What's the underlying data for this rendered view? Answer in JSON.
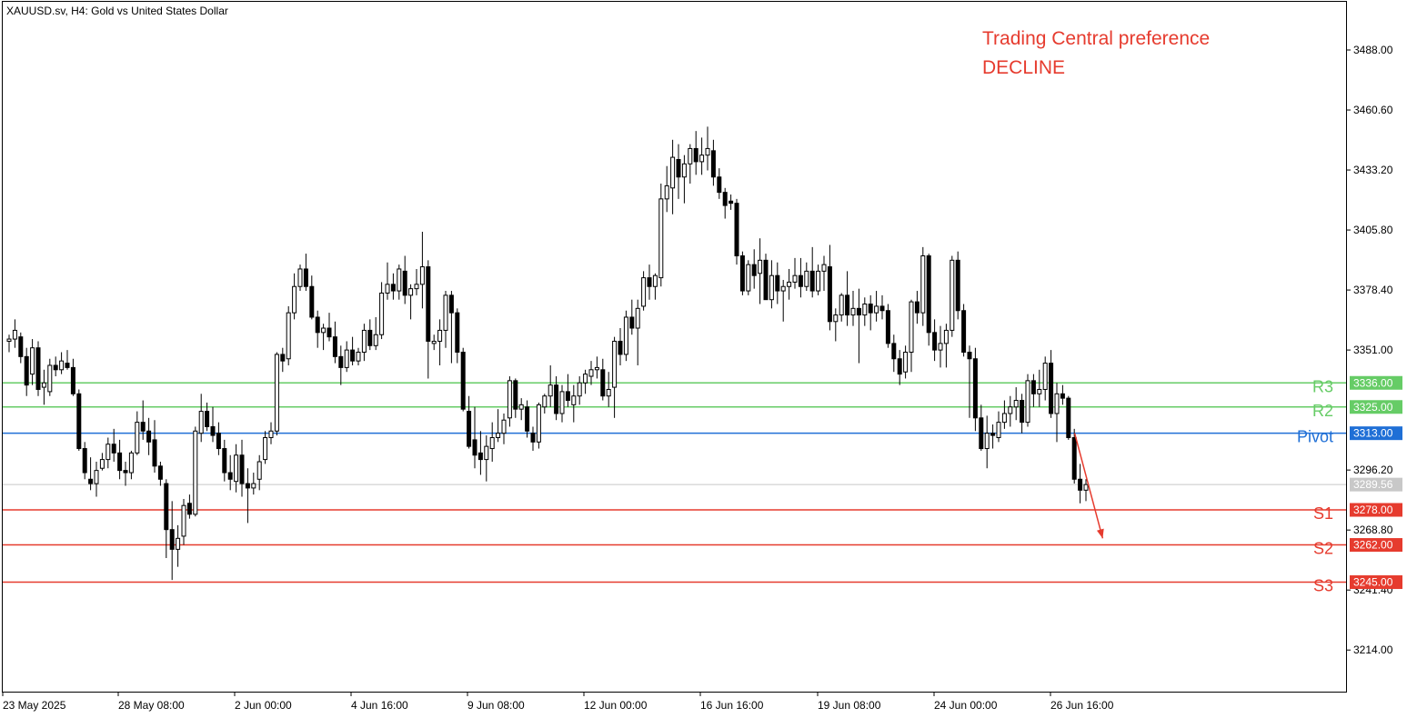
{
  "header": {
    "symbol_title": "XAUUSD.sv, H4:  Gold vs United States Dollar"
  },
  "preference": {
    "line1": "Trading Central preference",
    "line2": "DECLINE"
  },
  "colors": {
    "resistance": "#66cc66",
    "pivot": "#1f6fd6",
    "support": "#e63b2e",
    "current_price": "#c8c8c8",
    "arrow": "#e63b2e"
  },
  "chart_data": {
    "type": "candlestick",
    "symbol": "XAUUSD.sv",
    "timeframe": "H4",
    "ylim": [
      3195,
      3510
    ],
    "y_ticks": [
      "3488.00",
      "3460.60",
      "3433.20",
      "3405.80",
      "3378.40",
      "3351.00",
      "3296.20",
      "3268.80",
      "3241.40",
      "3214.00"
    ],
    "x_ticks": [
      "23 May 2025",
      "28 May 08:00",
      "2 Jun 00:00",
      "4 Jun 16:00",
      "9 Jun 08:00",
      "12 Jun 00:00",
      "16 Jun 16:00",
      "19 Jun 08:00",
      "24 Jun 00:00",
      "26 Jun 16:00"
    ],
    "current_price": {
      "value": 3289.56,
      "label": "3289.56"
    },
    "levels": [
      {
        "name": "R3",
        "value": 3336.0,
        "label": "3336.00",
        "kind": "resistance"
      },
      {
        "name": "R2",
        "value": 3325.0,
        "label": "3325.00",
        "kind": "resistance"
      },
      {
        "name": "Pivot",
        "value": 3313.0,
        "label": "3313.00",
        "kind": "pivot"
      },
      {
        "name": "S1",
        "value": 3278.0,
        "label": "3278.00",
        "kind": "support"
      },
      {
        "name": "S2",
        "value": 3262.0,
        "label": "3262.00",
        "kind": "support"
      },
      {
        "name": "S3",
        "value": 3245.0,
        "label": "3245.00",
        "kind": "support"
      }
    ],
    "arrow": {
      "from_bar": 179,
      "from_price": 3313,
      "to_bar": 186,
      "to_price": 3265
    },
    "candles": [
      [
        3355,
        3358,
        3350,
        3356
      ],
      [
        3356,
        3365,
        3352,
        3360
      ],
      [
        3357,
        3359,
        3345,
        3348
      ],
      [
        3348,
        3352,
        3330,
        3335
      ],
      [
        3340,
        3356,
        3335,
        3352
      ],
      [
        3352,
        3355,
        3330,
        3333
      ],
      [
        3334,
        3342,
        3326,
        3336
      ],
      [
        3332,
        3347,
        3330,
        3344
      ],
      [
        3344,
        3348,
        3339,
        3342
      ],
      [
        3342,
        3350,
        3340,
        3346
      ],
      [
        3345,
        3351,
        3342,
        3343
      ],
      [
        3343,
        3347,
        3330,
        3331
      ],
      [
        3331,
        3333,
        3305,
        3306
      ],
      [
        3306,
        3309,
        3292,
        3295
      ],
      [
        3292,
        3302,
        3287,
        3290
      ],
      [
        3290,
        3300,
        3284,
        3296
      ],
      [
        3297,
        3304,
        3296,
        3301
      ],
      [
        3301,
        3311,
        3297,
        3308
      ],
      [
        3308,
        3315,
        3300,
        3304
      ],
      [
        3304,
        3310,
        3292,
        3296
      ],
      [
        3296,
        3300,
        3289,
        3295
      ],
      [
        3295,
        3305,
        3292,
        3304
      ],
      [
        3304,
        3323,
        3303,
        3318
      ],
      [
        3318,
        3328,
        3310,
        3314
      ],
      [
        3314,
        3320,
        3303,
        3309
      ],
      [
        3310,
        3319,
        3295,
        3298
      ],
      [
        3298,
        3300,
        3289,
        3292
      ],
      [
        3290,
        3292,
        3256,
        3269
      ],
      [
        3269,
        3282,
        3246,
        3260
      ],
      [
        3260,
        3271,
        3252,
        3265
      ],
      [
        3266,
        3283,
        3262,
        3280
      ],
      [
        3281,
        3285,
        3274,
        3276
      ],
      [
        3276,
        3316,
        3275,
        3314
      ],
      [
        3313,
        3331,
        3309,
        3323
      ],
      [
        3323,
        3327,
        3314,
        3316
      ],
      [
        3316,
        3325,
        3309,
        3312
      ],
      [
        3313,
        3318,
        3303,
        3306
      ],
      [
        3306,
        3310,
        3291,
        3295
      ],
      [
        3295,
        3303,
        3287,
        3292
      ],
      [
        3291,
        3308,
        3286,
        3303
      ],
      [
        3303,
        3310,
        3284,
        3290
      ],
      [
        3290,
        3297,
        3272,
        3288
      ],
      [
        3288,
        3295,
        3285,
        3290
      ],
      [
        3292,
        3303,
        3287,
        3300
      ],
      [
        3301,
        3314,
        3299,
        3311
      ],
      [
        3311,
        3318,
        3308,
        3314
      ],
      [
        3314,
        3350,
        3312,
        3349
      ],
      [
        3349,
        3352,
        3341,
        3346
      ],
      [
        3347,
        3371,
        3344,
        3368
      ],
      [
        3368,
        3386,
        3365,
        3380
      ],
      [
        3380,
        3390,
        3378,
        3388
      ],
      [
        3388,
        3395,
        3378,
        3380
      ],
      [
        3380,
        3385,
        3365,
        3366
      ],
      [
        3366,
        3369,
        3352,
        3359
      ],
      [
        3359,
        3363,
        3351,
        3361
      ],
      [
        3361,
        3368,
        3355,
        3357
      ],
      [
        3357,
        3364,
        3345,
        3348
      ],
      [
        3348,
        3353,
        3335,
        3343
      ],
      [
        3343,
        3355,
        3341,
        3351
      ],
      [
        3351,
        3357,
        3344,
        3346
      ],
      [
        3346,
        3352,
        3344,
        3350
      ],
      [
        3350,
        3363,
        3346,
        3360
      ],
      [
        3360,
        3365,
        3351,
        3353
      ],
      [
        3353,
        3366,
        3351,
        3358
      ],
      [
        3358,
        3382,
        3356,
        3377
      ],
      [
        3377,
        3391,
        3374,
        3381
      ],
      [
        3381,
        3386,
        3374,
        3378
      ],
      [
        3378,
        3390,
        3374,
        3388
      ],
      [
        3387,
        3394,
        3372,
        3376
      ],
      [
        3376,
        3381,
        3365,
        3379
      ],
      [
        3379,
        3388,
        3376,
        3381
      ],
      [
        3381,
        3405,
        3370,
        3389
      ],
      [
        3389,
        3392,
        3338,
        3355
      ],
      [
        3354,
        3358,
        3351,
        3355
      ],
      [
        3355,
        3365,
        3344,
        3360
      ],
      [
        3360,
        3378,
        3352,
        3376
      ],
      [
        3376,
        3378,
        3345,
        3368
      ],
      [
        3368,
        3370,
        3345,
        3350
      ],
      [
        3350,
        3352,
        3323,
        3324
      ],
      [
        3323,
        3330,
        3306,
        3307
      ],
      [
        3310,
        3325,
        3297,
        3303
      ],
      [
        3304,
        3314,
        3294,
        3301
      ],
      [
        3301,
        3312,
        3291,
        3307
      ],
      [
        3306,
        3318,
        3300,
        3311
      ],
      [
        3311,
        3324,
        3309,
        3313
      ],
      [
        3313,
        3322,
        3308,
        3319
      ],
      [
        3320,
        3339,
        3316,
        3337
      ],
      [
        3337,
        3338,
        3320,
        3324
      ],
      [
        3324,
        3329,
        3319,
        3326
      ],
      [
        3325,
        3328,
        3311,
        3314
      ],
      [
        3313,
        3316,
        3305,
        3309
      ],
      [
        3309,
        3327,
        3306,
        3326
      ],
      [
        3325,
        3331,
        3322,
        3330
      ],
      [
        3330,
        3344,
        3325,
        3335
      ],
      [
        3335,
        3339,
        3319,
        3322
      ],
      [
        3322,
        3335,
        3318,
        3332
      ],
      [
        3332,
        3340,
        3325,
        3328
      ],
      [
        3326,
        3335,
        3318,
        3330
      ],
      [
        3330,
        3339,
        3326,
        3336
      ],
      [
        3336,
        3342,
        3331,
        3340
      ],
      [
        3339,
        3346,
        3335,
        3342
      ],
      [
        3342,
        3348,
        3338,
        3343
      ],
      [
        3342,
        3347,
        3328,
        3330
      ],
      [
        3330,
        3341,
        3325,
        3333
      ],
      [
        3334,
        3357,
        3320,
        3355
      ],
      [
        3355,
        3361,
        3344,
        3349
      ],
      [
        3349,
        3369,
        3346,
        3366
      ],
      [
        3366,
        3374,
        3358,
        3361
      ],
      [
        3361,
        3374,
        3344,
        3370
      ],
      [
        3371,
        3387,
        3369,
        3384
      ],
      [
        3384,
        3390,
        3374,
        3380
      ],
      [
        3380,
        3386,
        3374,
        3385
      ],
      [
        3384,
        3427,
        3380,
        3420
      ],
      [
        3420,
        3435,
        3414,
        3426
      ],
      [
        3425,
        3447,
        3413,
        3439
      ],
      [
        3438,
        3445,
        3420,
        3430
      ],
      [
        3430,
        3440,
        3418,
        3436
      ],
      [
        3436,
        3445,
        3427,
        3443
      ],
      [
        3443,
        3451,
        3431,
        3437
      ],
      [
        3437,
        3448,
        3431,
        3440
      ],
      [
        3440,
        3453,
        3433,
        3443
      ],
      [
        3442,
        3447,
        3426,
        3430
      ],
      [
        3430,
        3434,
        3420,
        3423
      ],
      [
        3423,
        3425,
        3411,
        3417
      ],
      [
        3419,
        3422,
        3415,
        3418
      ],
      [
        3418,
        3420,
        3390,
        3394
      ],
      [
        3394,
        3396,
        3376,
        3378
      ],
      [
        3378,
        3392,
        3376,
        3390
      ],
      [
        3390,
        3397,
        3379,
        3385
      ],
      [
        3386,
        3402,
        3372,
        3392
      ],
      [
        3392,
        3395,
        3374,
        3374
      ],
      [
        3374,
        3392,
        3370,
        3385
      ],
      [
        3385,
        3391,
        3372,
        3378
      ],
      [
        3378,
        3383,
        3364,
        3380
      ],
      [
        3380,
        3388,
        3374,
        3382
      ],
      [
        3382,
        3393,
        3379,
        3385
      ],
      [
        3385,
        3393,
        3375,
        3380
      ],
      [
        3380,
        3391,
        3378,
        3387
      ],
      [
        3387,
        3398,
        3375,
        3378
      ],
      [
        3378,
        3390,
        3376,
        3387
      ],
      [
        3387,
        3394,
        3378,
        3390
      ],
      [
        3389,
        3399,
        3360,
        3364
      ],
      [
        3364,
        3370,
        3355,
        3367
      ],
      [
        3367,
        3377,
        3364,
        3376
      ],
      [
        3376,
        3387,
        3362,
        3367
      ],
      [
        3367,
        3378,
        3362,
        3370
      ],
      [
        3370,
        3379,
        3345,
        3367
      ],
      [
        3367,
        3375,
        3362,
        3372
      ],
      [
        3372,
        3376,
        3360,
        3368
      ],
      [
        3368,
        3378,
        3364,
        3371
      ],
      [
        3371,
        3376,
        3365,
        3369
      ],
      [
        3369,
        3372,
        3352,
        3354
      ],
      [
        3354,
        3358,
        3341,
        3347
      ],
      [
        3347,
        3351,
        3335,
        3340
      ],
      [
        3341,
        3353,
        3338,
        3350
      ],
      [
        3350,
        3374,
        3341,
        3373
      ],
      [
        3373,
        3378,
        3363,
        3368
      ],
      [
        3368,
        3398,
        3362,
        3394
      ],
      [
        3394,
        3395,
        3353,
        3359
      ],
      [
        3359,
        3365,
        3346,
        3351
      ],
      [
        3351,
        3362,
        3343,
        3354
      ],
      [
        3354,
        3363,
        3343,
        3360
      ],
      [
        3360,
        3394,
        3357,
        3392
      ],
      [
        3392,
        3396,
        3365,
        3369
      ],
      [
        3369,
        3372,
        3348,
        3350
      ],
      [
        3350,
        3353,
        3320,
        3347
      ],
      [
        3347,
        3352,
        3314,
        3320
      ],
      [
        3320,
        3326,
        3305,
        3306
      ],
      [
        3306,
        3321,
        3297,
        3313
      ],
      [
        3313,
        3317,
        3306,
        3312
      ],
      [
        3311,
        3323,
        3309,
        3318
      ],
      [
        3318,
        3328,
        3315,
        3322
      ],
      [
        3322,
        3330,
        3316,
        3325
      ],
      [
        3325,
        3334,
        3319,
        3328
      ],
      [
        3328,
        3331,
        3313,
        3318
      ],
      [
        3318,
        3340,
        3316,
        3337
      ],
      [
        3337,
        3340,
        3325,
        3331
      ],
      [
        3331,
        3342,
        3325,
        3333
      ],
      [
        3333,
        3348,
        3328,
        3345
      ],
      [
        3345,
        3351,
        3320,
        3322
      ],
      [
        3322,
        3336,
        3309,
        3331
      ],
      [
        3331,
        3335,
        3326,
        3329
      ],
      [
        3329,
        3330,
        3310,
        3311
      ],
      [
        3311,
        3315,
        3290,
        3292
      ],
      [
        3292,
        3299,
        3281,
        3287
      ],
      [
        3287,
        3292,
        3282,
        3289.56
      ]
    ]
  }
}
